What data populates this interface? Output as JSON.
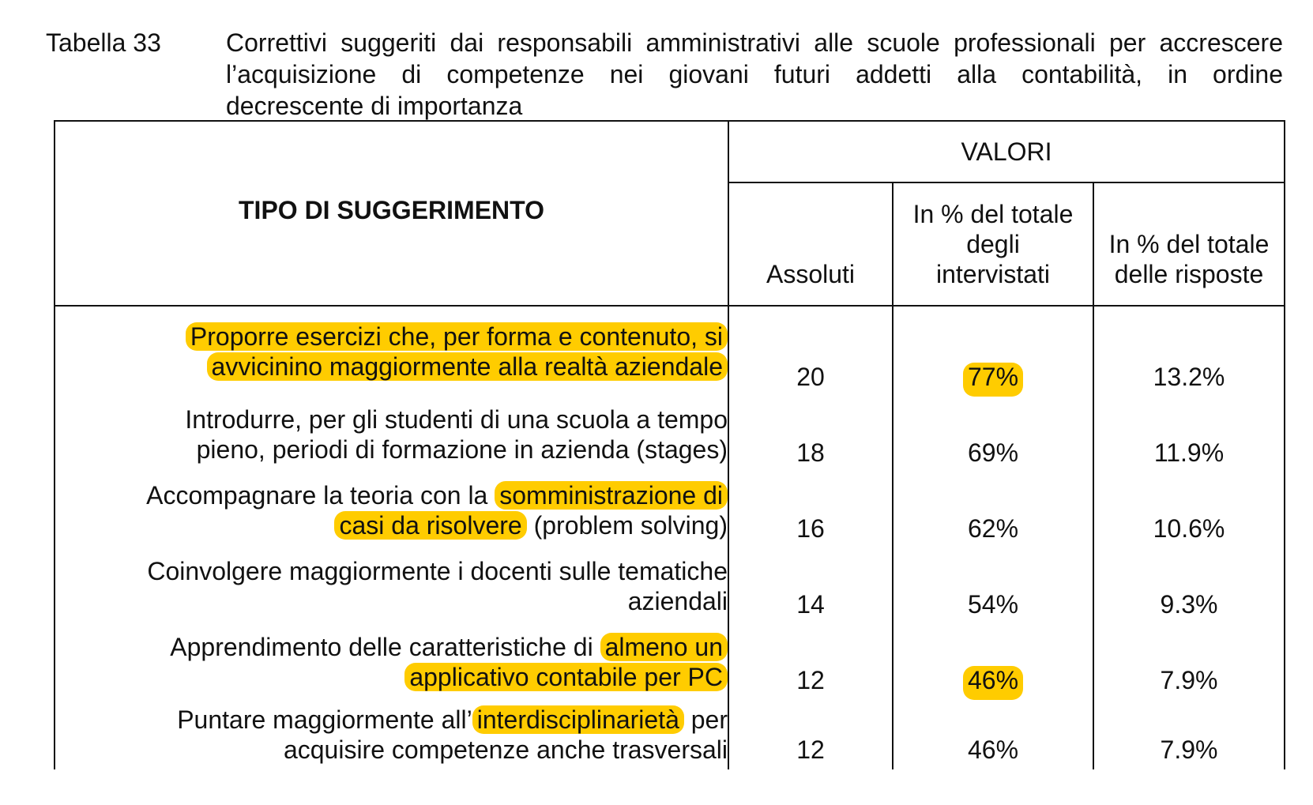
{
  "caption": {
    "label": "Tabella 33",
    "lines": [
      "Correttivi suggeriti dai responsabili amministrativi alle scuole professionali per accrescere",
      "l’acquisizione di competenze nei giovani futuri addetti alla contabilità, in ordine",
      "decrescente di importanza"
    ]
  },
  "table": {
    "header_left": "TIPO DI SUGGERIMENTO",
    "header_group": "VALORI",
    "subheaders": {
      "abs": "Assoluti",
      "pct_intervistati": [
        "In % del totale",
        "degli",
        "intervistati"
      ],
      "pct_risposte": [
        "In % del totale",
        "delle risposte"
      ]
    },
    "rows": [
      {
        "line1": [
          {
            "text": "Proporre esercizi che, per forma e contenuto, si",
            "highlight": true
          }
        ],
        "line2": [
          {
            "text": "avvicinino maggiormente alla realtà aziendale",
            "highlight": true
          }
        ],
        "abs": "20",
        "pct_intervistati": "77%",
        "pct_intervistati_highlight": true,
        "pct_risposte": "13.2%"
      },
      {
        "line1": [
          {
            "text": "Introdurre, per gli studenti di una scuola a tempo",
            "highlight": false
          }
        ],
        "line2": [
          {
            "text": "pieno, periodi di formazione in azienda (stages)",
            "highlight": false
          }
        ],
        "abs": "18",
        "pct_intervistati": "69%",
        "pct_intervistati_highlight": false,
        "pct_risposte": "11.9%"
      },
      {
        "line1": [
          {
            "text": "Accompagnare la teoria con la ",
            "highlight": false
          },
          {
            "text": "somministrazione di",
            "highlight": true
          }
        ],
        "line2": [
          {
            "text": "casi da risolvere",
            "highlight": true
          },
          {
            "text": " (problem solving)",
            "highlight": false
          }
        ],
        "abs": "16",
        "pct_intervistati": "62%",
        "pct_intervistati_highlight": false,
        "pct_risposte": "10.6%"
      },
      {
        "line1": [
          {
            "text": "Coinvolgere maggiormente i docenti sulle tematiche",
            "highlight": false
          }
        ],
        "line2": [
          {
            "text": "aziendali",
            "highlight": false
          }
        ],
        "abs": "14",
        "pct_intervistati": "54%",
        "pct_intervistati_highlight": false,
        "pct_risposte": "9.3%"
      },
      {
        "line1": [
          {
            "text": "Apprendimento delle caratteristiche di ",
            "highlight": false
          },
          {
            "text": "almeno un",
            "highlight": true
          }
        ],
        "line2": [
          {
            "text": "applicativo contabile per PC",
            "highlight": true
          }
        ],
        "abs": "12",
        "pct_intervistati": "46%",
        "pct_intervistati_highlight": true,
        "pct_risposte": "7.9%"
      },
      {
        "line1": [
          {
            "text": "Puntare maggiormente all’",
            "highlight": false
          },
          {
            "text": "interdisciplinarietà",
            "highlight": true
          },
          {
            "text": " per",
            "highlight": false
          }
        ],
        "line2": [
          {
            "text": "acquisire competenze anche trasversali",
            "highlight": false
          }
        ],
        "abs": "12",
        "pct_intervistati": "46%",
        "pct_intervistati_highlight": false,
        "pct_risposte": "7.9%"
      }
    ]
  },
  "colors": {
    "highlight": "#ffcc00",
    "text": "#111111",
    "border": "#111111"
  }
}
